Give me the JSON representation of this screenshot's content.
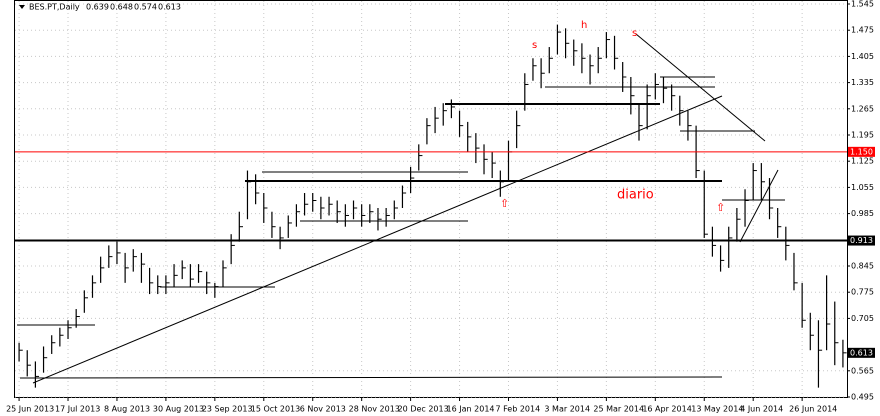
{
  "chart_data": {
    "type": "ohlc",
    "title": "BES.PT,Daily",
    "header_values": [
      0.639,
      0.648,
      0.574,
      0.613
    ],
    "color": "#000000",
    "categories": [
      "25 Jun 2013",
      null,
      null,
      null,
      null,
      null,
      "17 Jul 2013",
      null,
      null,
      null,
      null,
      null,
      "8 Aug 2013",
      null,
      null,
      null,
      null,
      null,
      "30 Aug 2013",
      null,
      null,
      null,
      null,
      null,
      "23 Sep 2013",
      null,
      null,
      null,
      null,
      null,
      "15 Oct 2013",
      null,
      null,
      null,
      null,
      null,
      "6 Nov 2013",
      null,
      null,
      null,
      null,
      null,
      "28 Nov 2013",
      null,
      null,
      null,
      null,
      null,
      "20 Dec 2013",
      null,
      null,
      null,
      null,
      null,
      "16 Jan 2014",
      null,
      null,
      null,
      null,
      null,
      "7 Feb 2014",
      null,
      null,
      null,
      null,
      null,
      "3 Mar 2014",
      null,
      null,
      null,
      null,
      null,
      "25 Mar 2014",
      null,
      null,
      null,
      null,
      null,
      "16 Apr 2014",
      null,
      null,
      null,
      null,
      null,
      "13 May 2014",
      null,
      null,
      null,
      null,
      null,
      "4 Jun 2014",
      null,
      null,
      null,
      null,
      null,
      "26 Jun 2014",
      null,
      null,
      null,
      null,
      null
    ],
    "high": [
      0.64,
      0.62,
      0.59,
      0.63,
      0.66,
      0.68,
      0.7,
      0.73,
      0.78,
      0.82,
      0.87,
      0.9,
      0.91,
      0.88,
      0.89,
      0.88,
      0.84,
      0.82,
      0.82,
      0.85,
      0.86,
      0.85,
      0.85,
      0.83,
      0.8,
      0.86,
      0.93,
      0.99,
      1.1,
      1.09,
      1.04,
      0.99,
      0.95,
      0.98,
      1.01,
      1.04,
      1.04,
      1.03,
      1.03,
      1.02,
      1.01,
      1.02,
      1.01,
      1.01,
      1.0,
      1.0,
      1.02,
      1.06,
      1.11,
      1.17,
      1.24,
      1.27,
      1.28,
      1.29,
      1.26,
      1.23,
      1.2,
      1.17,
      1.15,
      1.1,
      1.18,
      1.26,
      1.36,
      1.4,
      1.4,
      1.43,
      1.49,
      1.48,
      1.45,
      1.44,
      1.41,
      1.43,
      1.47,
      1.46,
      1.39,
      1.35,
      1.28,
      1.33,
      1.36,
      1.35,
      1.33,
      1.3,
      1.26,
      1.22,
      1.1,
      0.95,
      0.9,
      0.95,
      1.0,
      1.05,
      1.12,
      1.12,
      1.08,
      1.0,
      0.95,
      0.88,
      0.8,
      0.72,
      0.7,
      0.82,
      0.75,
      0.648
    ],
    "low": [
      0.59,
      0.55,
      0.52,
      0.56,
      0.61,
      0.63,
      0.65,
      0.68,
      0.72,
      0.76,
      0.8,
      0.84,
      0.85,
      0.8,
      0.83,
      0.8,
      0.77,
      0.77,
      0.77,
      0.79,
      0.81,
      0.79,
      0.8,
      0.77,
      0.76,
      0.79,
      0.85,
      0.91,
      0.97,
      1.01,
      0.96,
      0.92,
      0.89,
      0.92,
      0.95,
      0.98,
      0.99,
      0.97,
      0.98,
      0.96,
      0.95,
      0.97,
      0.95,
      0.96,
      0.94,
      0.95,
      0.97,
      1.0,
      1.04,
      1.1,
      1.17,
      1.2,
      1.22,
      1.24,
      1.19,
      1.15,
      1.12,
      1.09,
      1.08,
      1.03,
      1.07,
      1.16,
      1.26,
      1.34,
      1.32,
      1.36,
      1.41,
      1.4,
      1.38,
      1.36,
      1.33,
      1.36,
      1.4,
      1.37,
      1.31,
      1.25,
      1.18,
      1.21,
      1.29,
      1.28,
      1.26,
      1.22,
      1.18,
      1.08,
      0.92,
      0.87,
      0.83,
      0.84,
      0.91,
      0.95,
      1.02,
      1.02,
      0.97,
      0.92,
      0.86,
      0.78,
      0.68,
      0.62,
      0.52,
      0.62,
      0.58,
      0.574
    ],
    "close": [
      0.62,
      0.58,
      0.55,
      0.6,
      0.64,
      0.66,
      0.68,
      0.71,
      0.76,
      0.8,
      0.84,
      0.87,
      0.88,
      0.84,
      0.87,
      0.85,
      0.8,
      0.79,
      0.8,
      0.82,
      0.84,
      0.81,
      0.83,
      0.8,
      0.79,
      0.84,
      0.9,
      0.95,
      1.07,
      1.04,
      1.0,
      0.95,
      0.92,
      0.96,
      0.99,
      1.01,
      1.02,
      1.0,
      1.01,
      0.99,
      0.98,
      1.0,
      0.98,
      0.99,
      0.97,
      0.98,
      1.0,
      1.04,
      1.08,
      1.14,
      1.22,
      1.24,
      1.26,
      1.27,
      1.22,
      1.19,
      1.16,
      1.13,
      1.12,
      1.07,
      1.15,
      1.22,
      1.33,
      1.38,
      1.36,
      1.4,
      1.47,
      1.44,
      1.42,
      1.4,
      1.38,
      1.4,
      1.45,
      1.4,
      1.35,
      1.3,
      1.22,
      1.3,
      1.33,
      1.32,
      1.3,
      1.26,
      1.22,
      1.1,
      0.93,
      0.9,
      0.86,
      0.92,
      0.97,
      1.02,
      1.1,
      1.07,
      1.0,
      0.95,
      0.9,
      0.8,
      0.7,
      0.66,
      0.62,
      0.69,
      0.64,
      0.613
    ],
    "ylim": [
      0.495,
      1.545
    ],
    "yticks": [
      1.545,
      1.475,
      1.405,
      1.335,
      1.265,
      1.195,
      1.125,
      1.055,
      0.985,
      0.845,
      0.775,
      0.705,
      0.565,
      0.495
    ],
    "grid": true,
    "hlines": [
      {
        "value": 1.15,
        "label": "1.150",
        "color": "#ff0000"
      },
      {
        "value": 0.913,
        "color": "#000000"
      }
    ],
    "price_tag": 0.613,
    "annotations": [
      "s",
      "h",
      "s",
      "diario",
      "⇧",
      "⇧"
    ]
  }
}
